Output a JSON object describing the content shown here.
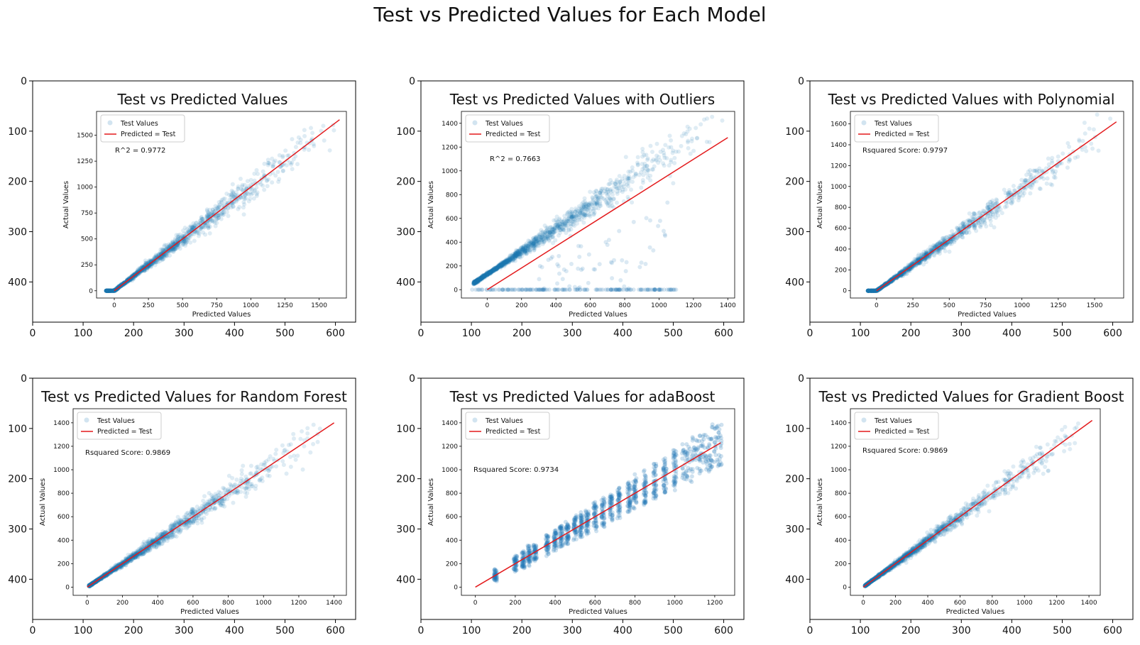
{
  "figure": {
    "title": "Test vs Predicted Values for Each Model"
  },
  "panel_axes": {
    "x_ticks": [
      0,
      100,
      200,
      300,
      400,
      500,
      600
    ],
    "y_ticks": [
      0,
      100,
      200,
      300,
      400
    ],
    "xlim": [
      0,
      640
    ],
    "ylim": [
      480,
      0
    ]
  },
  "colors": {
    "scatter": "#1f77b4",
    "line": "#e31a1c",
    "frame": "#000000"
  },
  "chart_data": [
    {
      "type": "scatter",
      "title": "Test vs Predicted Values",
      "xlabel": "Predicted Values",
      "ylabel": "Actual Values",
      "xticks": [
        0,
        250,
        500,
        750,
        1000,
        1250,
        1500
      ],
      "yticks": [
        0,
        250,
        500,
        750,
        1000,
        1250,
        1500
      ],
      "xlim": [
        -130,
        1700
      ],
      "ylim": [
        -70,
        1730
      ],
      "legend": [
        "Test Values",
        "Predicted = Test"
      ],
      "annotation": "R^2 = 0.9772",
      "series": [
        {
          "kind": "points",
          "x_range": [
            -60,
            1650
          ],
          "spread": 0.07,
          "description_values": {
            "min": 0,
            "max": 1650
          }
        },
        {
          "kind": "line",
          "x": [
            0,
            1650
          ],
          "y": [
            0,
            1650
          ]
        }
      ]
    },
    {
      "type": "scatter",
      "title": "Test vs Predicted Values with Outliers",
      "xlabel": "Predicted Values",
      "ylabel": "Actual Values",
      "xticks": [
        0,
        200,
        400,
        600,
        800,
        1000,
        1200,
        1400
      ],
      "yticks": [
        0,
        200,
        400,
        600,
        800,
        1000,
        1200,
        1400
      ],
      "xlim": [
        -150,
        1440
      ],
      "ylim": [
        -70,
        1500
      ],
      "legend": [
        "Test Values",
        "Predicted = Test"
      ],
      "annotation": "R^2 = 0.7663",
      "series": [
        {
          "kind": "points",
          "x_range": [
            -80,
            1400
          ],
          "offset": 130,
          "spread": 0.1
        },
        {
          "kind": "zeros",
          "x_range": [
            -90,
            1100
          ],
          "y": 0
        },
        {
          "kind": "line",
          "x": [
            0,
            1400
          ],
          "y": [
            0,
            1280
          ]
        }
      ]
    },
    {
      "type": "scatter",
      "title": "Test vs Predicted Values with Polynomial",
      "xlabel": "Predicted Values",
      "ylabel": "Actual Values",
      "xticks": [
        0,
        250,
        500,
        750,
        1000,
        1250,
        1500
      ],
      "yticks": [
        0,
        200,
        400,
        600,
        800,
        1000,
        1200,
        1400,
        1600
      ],
      "xlim": [
        -180,
        1700
      ],
      "ylim": [
        -70,
        1720
      ],
      "legend": [
        "Test Values",
        "Predicted = Test"
      ],
      "annotation": "Rsquared Score: 0.9797",
      "series": [
        {
          "kind": "points",
          "x_range": [
            -60,
            1650
          ],
          "spread": 0.065
        },
        {
          "kind": "line",
          "x": [
            0,
            1650
          ],
          "y": [
            0,
            1620
          ]
        }
      ]
    },
    {
      "type": "scatter",
      "title": "Test vs Predicted Values for Random Forest",
      "xlabel": "Predicted Values",
      "ylabel": "Actual Values",
      "xticks": [
        0,
        200,
        400,
        600,
        800,
        1000,
        1200,
        1400
      ],
      "yticks": [
        0,
        200,
        400,
        600,
        800,
        1000,
        1200,
        1400
      ],
      "xlim": [
        -80,
        1470
      ],
      "ylim": [
        -70,
        1520
      ],
      "legend": [
        "Test Values",
        "Predicted = Test"
      ],
      "annotation": "Rsquared Score: 0.9869",
      "series": [
        {
          "kind": "points",
          "x_range": [
            10,
            1400
          ],
          "spread": 0.06
        },
        {
          "kind": "line",
          "x": [
            0,
            1400
          ],
          "y": [
            0,
            1400
          ]
        }
      ]
    },
    {
      "type": "scatter",
      "title": "Test vs Predicted Values for adaBoost",
      "xlabel": "Predicted Values",
      "ylabel": "Actual Values",
      "xticks": [
        0,
        200,
        400,
        600,
        800,
        1000,
        1200
      ],
      "yticks": [
        0,
        200,
        400,
        600,
        800,
        1000,
        1200,
        1400
      ],
      "xlim": [
        -70,
        1300
      ],
      "ylim": [
        -70,
        1520
      ],
      "legend": [
        "Test Values",
        "Predicted = Test"
      ],
      "annotation": "Rsquared Score: 0.9734",
      "series": [
        {
          "kind": "columns",
          "x": [
            100,
            200,
            240,
            270,
            300,
            360,
            400,
            430,
            460,
            500,
            530,
            560,
            600,
            640,
            680,
            720,
            770,
            800,
            850,
            900,
            950,
            1000,
            1060,
            1110,
            1160,
            1210
          ]
        },
        {
          "kind": "line",
          "x": [
            0,
            1230
          ],
          "y": [
            0,
            1230
          ]
        }
      ]
    },
    {
      "type": "scatter",
      "title": "Test vs Predicted Values for Gradient Boost",
      "xlabel": "Predicted Values",
      "ylabel": "Actual Values",
      "xticks": [
        0,
        200,
        400,
        600,
        800,
        1000,
        1200,
        1400
      ],
      "yticks": [
        0,
        200,
        400,
        600,
        800,
        1000,
        1200,
        1400
      ],
      "xlim": [
        -80,
        1470
      ],
      "ylim": [
        -70,
        1520
      ],
      "legend": [
        "Test Values",
        "Predicted = Test"
      ],
      "annotation": "Rsquared Score: 0.9869",
      "series": [
        {
          "kind": "points",
          "x_range": [
            10,
            1420
          ],
          "spread": 0.055
        },
        {
          "kind": "line",
          "x": [
            0,
            1420
          ],
          "y": [
            0,
            1420
          ]
        }
      ]
    }
  ]
}
